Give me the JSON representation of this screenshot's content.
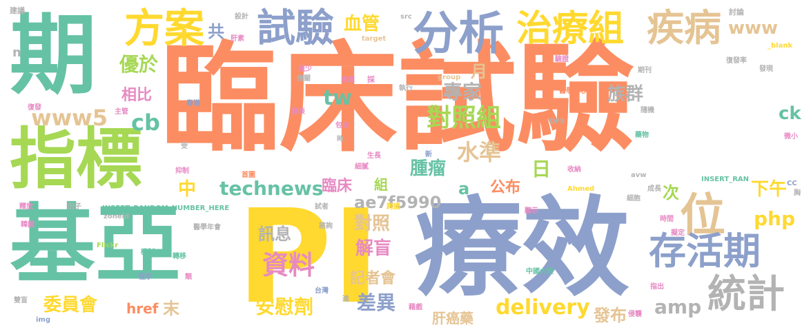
{
  "palette": {
    "green": "#66c2a5",
    "orange": "#fc8d62",
    "blue": "#8da0cb",
    "pink": "#e78ac3",
    "lime": "#a6d854",
    "yellow": "#ffd92f",
    "tan": "#e5c494",
    "gray": "#b3b3b3"
  },
  "words": [
    {
      "text": "臨床試驗",
      "color": "orange"
    },
    {
      "text": "療效",
      "color": "blue"
    },
    {
      "text": "PI",
      "color": "yellow"
    },
    {
      "text": "期",
      "color": "green"
    },
    {
      "text": "基亞",
      "color": "green"
    },
    {
      "text": "指標",
      "color": "lime"
    },
    {
      "text": "分析",
      "color": "blue"
    },
    {
      "text": "方案",
      "color": "yellow"
    },
    {
      "text": "試驗",
      "color": "blue"
    },
    {
      "text": "治療組",
      "color": "yellow"
    },
    {
      "text": "疾病",
      "color": "tan"
    },
    {
      "text": "位",
      "color": "tan"
    },
    {
      "text": "存活期",
      "color": "blue"
    },
    {
      "text": "統計",
      "color": "gray"
    },
    {
      "text": "www",
      "color": "tan"
    },
    {
      "text": "血管",
      "color": "yellow"
    },
    {
      "text": "共",
      "color": "blue"
    },
    {
      "text": "優於",
      "color": "lime"
    },
    {
      "text": "相比",
      "color": "pink"
    },
    {
      "text": "cb",
      "color": "green"
    },
    {
      "text": "www5",
      "color": "tan"
    },
    {
      "text": "tw",
      "color": "green"
    },
    {
      "text": "月",
      "color": "tan"
    },
    {
      "text": "專家",
      "color": "gray"
    },
    {
      "text": "族群",
      "color": "gray"
    },
    {
      "text": "對照組",
      "color": "lime"
    },
    {
      "text": "ck",
      "color": "green"
    },
    {
      "text": "technews",
      "color": "green"
    },
    {
      "text": "中",
      "color": "yellow"
    },
    {
      "text": "臨床",
      "color": "pink"
    },
    {
      "text": "組",
      "color": "lime"
    },
    {
      "text": "腫瘤",
      "color": "green"
    },
    {
      "text": "水準",
      "color": "tan"
    },
    {
      "text": "a",
      "color": "green"
    },
    {
      "text": "公布",
      "color": "orange"
    },
    {
      "text": "日",
      "color": "lime"
    },
    {
      "text": "次",
      "color": "lime"
    },
    {
      "text": "下午",
      "color": "yellow"
    },
    {
      "text": "php",
      "color": "yellow"
    },
    {
      "text": "ae7f5990",
      "color": "gray"
    },
    {
      "text": "對照",
      "color": "tan"
    },
    {
      "text": "訊息",
      "color": "gray"
    },
    {
      "text": "解盲",
      "color": "pink"
    },
    {
      "text": "資料",
      "color": "pink"
    },
    {
      "text": "記者會",
      "color": "tan"
    },
    {
      "text": "差異",
      "color": "blue"
    },
    {
      "text": "安慰劑",
      "color": "yellow"
    },
    {
      "text": "委員會",
      "color": "yellow"
    },
    {
      "text": "href",
      "color": "orange"
    },
    {
      "text": "末",
      "color": "tan"
    },
    {
      "text": "delivery",
      "color": "yellow"
    },
    {
      "text": "amp",
      "color": "gray"
    },
    {
      "text": "發布",
      "color": "tan"
    },
    {
      "text": "肝癌藥",
      "color": "tan"
    },
    {
      "text": "n",
      "color": "gray"
    },
    {
      "text": "建議",
      "color": "gray"
    },
    {
      "text": "設計",
      "color": "gray"
    },
    {
      "text": "肝素",
      "color": "pink"
    },
    {
      "text": "src",
      "color": "gray"
    },
    {
      "text": "target",
      "color": "tan"
    },
    {
      "text": "討論",
      "color": "gray"
    },
    {
      "text": "復發率",
      "color": "gray"
    },
    {
      "text": "_blank",
      "color": "yellow"
    },
    {
      "text": "驗證",
      "color": "pink"
    },
    {
      "text": "減少",
      "color": "pink"
    },
    {
      "text": "機關",
      "color": "gray"
    },
    {
      "text": "來源",
      "color": "pink"
    },
    {
      "text": "採",
      "color": "pink"
    },
    {
      "text": "group",
      "color": "tan"
    },
    {
      "text": "期刊",
      "color": "gray"
    },
    {
      "text": "執行",
      "color": "gray"
    },
    {
      "text": "發現",
      "color": "gray"
    },
    {
      "text": "醫學中心",
      "color": "orange"
    },
    {
      "text": "復發",
      "color": "pink"
    },
    {
      "text": "主管",
      "color": "pink"
    },
    {
      "text": "春港",
      "color": "blue"
    },
    {
      "text": "發表",
      "color": "pink"
    },
    {
      "text": "包含",
      "color": "pink"
    },
    {
      "text": "時",
      "color": "gray"
    },
    {
      "text": "DFS",
      "color": "gray"
    },
    {
      "text": "隨機",
      "color": "gray"
    },
    {
      "text": "藥物",
      "color": "green"
    },
    {
      "text": "微小",
      "color": "pink"
    },
    {
      "text": "受",
      "color": "gray"
    },
    {
      "text": "生長",
      "color": "pink"
    },
    {
      "text": "新",
      "color": "blue"
    },
    {
      "text": "細膩",
      "color": "pink"
    },
    {
      "text": "收納",
      "color": "pink"
    },
    {
      "text": "抑制",
      "color": "pink"
    },
    {
      "text": "首圖",
      "color": "orange"
    },
    {
      "text": "avw",
      "color": "gray"
    },
    {
      "text": "INSERT_RAN",
      "color": "green"
    },
    {
      "text": "INSERT_RANDOM_NUMBER_HERE",
      "color": "green"
    },
    {
      "text": "Ahmed",
      "color": "yellow"
    },
    {
      "text": "成長",
      "color": "gray"
    },
    {
      "text": "CC",
      "color": "blue"
    },
    {
      "text": "胸",
      "color": "gray"
    },
    {
      "text": "釋放",
      "color": "pink"
    },
    {
      "text": "因子",
      "color": "gray"
    },
    {
      "text": "試者",
      "color": "gray"
    },
    {
      "text": "細胞",
      "color": "gray"
    },
    {
      "text": "韓國",
      "color": "pink"
    },
    {
      "text": "zoneid",
      "color": "gray"
    },
    {
      "text": "跨國",
      "color": "yellow"
    },
    {
      "text": "顯示",
      "color": "pink"
    },
    {
      "text": "醫學年會",
      "color": "gray"
    },
    {
      "text": "諮詢",
      "color": "gray"
    },
    {
      "text": "時間",
      "color": "pink"
    },
    {
      "text": "擬定",
      "color": "pink"
    },
    {
      "text": "Flickr",
      "color": "lime"
    },
    {
      "text": "機制",
      "color": "green"
    },
    {
      "text": "轉移",
      "color": "green"
    },
    {
      "text": "程序",
      "color": "blue"
    },
    {
      "text": "類",
      "color": "pink"
    },
    {
      "text": "中國大陸",
      "color": "green"
    },
    {
      "text": "指出",
      "color": "pink"
    },
    {
      "text": "雙盲",
      "color": "gray"
    },
    {
      "text": "台灣",
      "color": "blue"
    },
    {
      "text": "進",
      "color": "gray"
    },
    {
      "text": "藉戲",
      "color": "pink"
    },
    {
      "text": "侵襲",
      "color": "pink"
    },
    {
      "text": "img",
      "color": "blue"
    }
  ]
}
